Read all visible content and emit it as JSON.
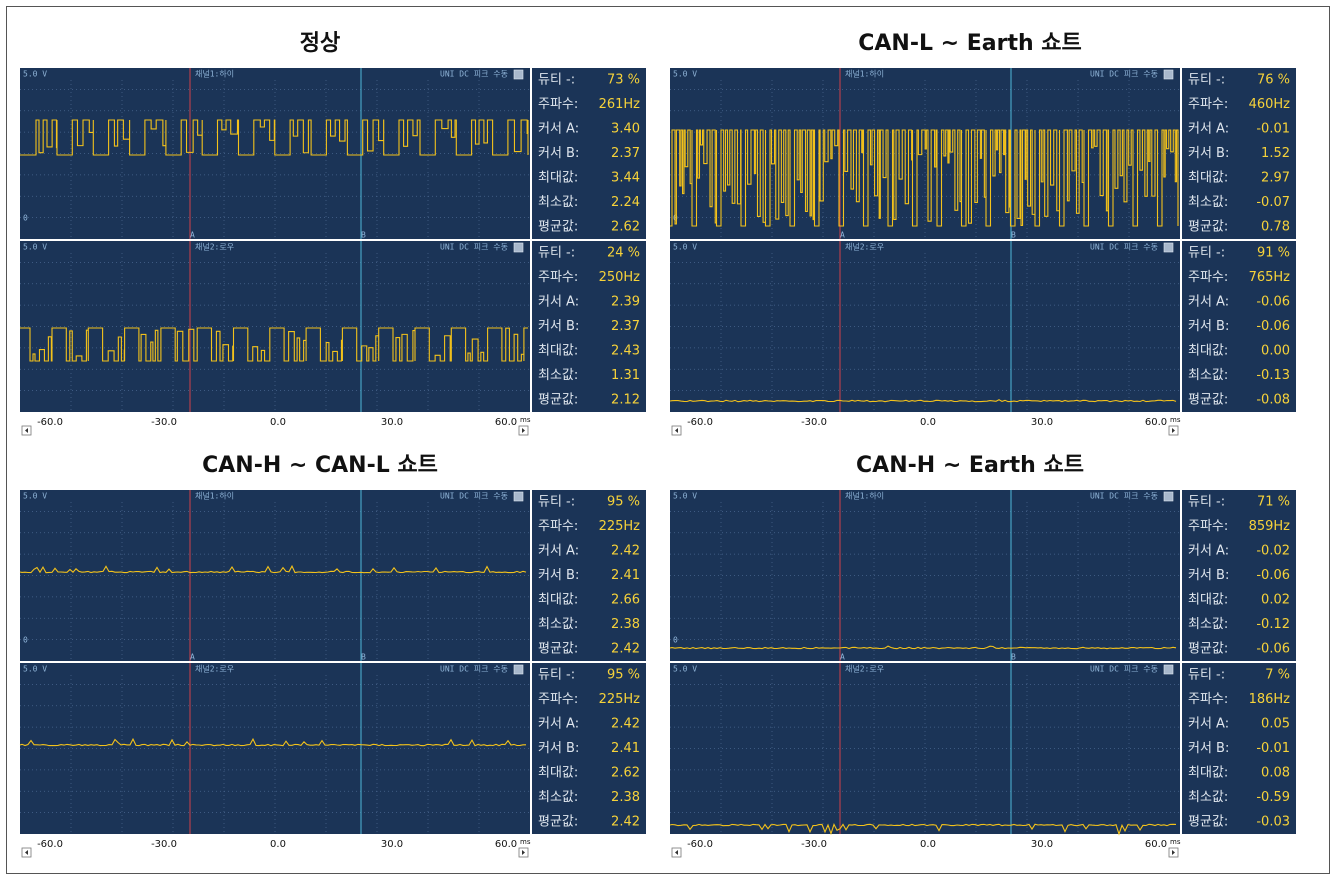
{
  "panels": [
    {
      "title": "정상",
      "channels": [
        {
          "scale": "5.0 V",
          "name": "채널1:하이",
          "mode": "UNI DC 피크 수동",
          "zero": "0",
          "cursor_labels": [
            "A",
            "B"
          ],
          "stats": [
            [
              "듀티 -:",
              "73 %"
            ],
            [
              "주파수:",
              "261Hz"
            ],
            [
              "커서 A:",
              "3.40"
            ],
            [
              "커서 B:",
              "2.37"
            ],
            [
              "최대값:",
              "3.44"
            ],
            [
              "최소값:",
              "2.24"
            ],
            [
              "평균값:",
              "2.62"
            ]
          ]
        },
        {
          "scale": "5.0 V",
          "name": "채널2:로우",
          "mode": "UNI DC 피크 수동",
          "stats": [
            [
              "듀티 -:",
              "24 %"
            ],
            [
              "주파수:",
              "250Hz"
            ],
            [
              "커서 A:",
              "2.39"
            ],
            [
              "커서 B:",
              "2.37"
            ],
            [
              "최대값:",
              "2.43"
            ],
            [
              "최소값:",
              "1.31"
            ],
            [
              "평균값:",
              "2.12"
            ]
          ]
        }
      ],
      "x_ticks": [
        "-60.0",
        "-30.0",
        "0.0",
        "30.0",
        "60.0"
      ],
      "x_unit": "ms"
    },
    {
      "title": "CAN-L ~ Earth 쇼트",
      "channels": [
        {
          "scale": "5.0 V",
          "name": "채널1:하이",
          "mode": "UNI DC 피크 수동",
          "zero": "0",
          "cursor_labels": [
            "A",
            "B"
          ],
          "stats": [
            [
              "듀티 -:",
              "76 %"
            ],
            [
              "주파수:",
              "460Hz"
            ],
            [
              "커서 A:",
              "-0.01"
            ],
            [
              "커서 B:",
              "1.52"
            ],
            [
              "최대값:",
              "2.97"
            ],
            [
              "최소값:",
              "-0.07"
            ],
            [
              "평균값:",
              "0.78"
            ]
          ]
        },
        {
          "scale": "5.0 V",
          "name": "채널2:로우",
          "mode": "UNI DC 피크 수동",
          "stats": [
            [
              "듀티 -:",
              "91 %"
            ],
            [
              "주파수:",
              "765Hz"
            ],
            [
              "커서 A:",
              "-0.06"
            ],
            [
              "커서 B:",
              "-0.06"
            ],
            [
              "최대값:",
              "0.00"
            ],
            [
              "최소값:",
              "-0.13"
            ],
            [
              "평균값:",
              "-0.08"
            ]
          ]
        }
      ],
      "x_ticks": [
        "-60.0",
        "-30.0",
        "0.0",
        "30.0",
        "60.0"
      ],
      "x_unit": "ms"
    },
    {
      "title": "CAN-H ~ CAN-L 쇼트",
      "channels": [
        {
          "scale": "5.0 V",
          "name": "채널1:하이",
          "mode": "UNI DC 피크 수동",
          "zero": "0",
          "cursor_labels": [
            "A",
            "B"
          ],
          "stats": [
            [
              "듀티 -:",
              "95 %"
            ],
            [
              "주파수:",
              "225Hz"
            ],
            [
              "커서 A:",
              "2.42"
            ],
            [
              "커서 B:",
              "2.41"
            ],
            [
              "최대값:",
              "2.66"
            ],
            [
              "최소값:",
              "2.38"
            ],
            [
              "평균값:",
              "2.42"
            ]
          ]
        },
        {
          "scale": "5.0 V",
          "name": "채널2:로우",
          "mode": "UNI DC 피크 수동",
          "stats": [
            [
              "듀티 -:",
              "95 %"
            ],
            [
              "주파수:",
              "225Hz"
            ],
            [
              "커서 A:",
              "2.42"
            ],
            [
              "커서 B:",
              "2.41"
            ],
            [
              "최대값:",
              "2.62"
            ],
            [
              "최소값:",
              "2.38"
            ],
            [
              "평균값:",
              "2.42"
            ]
          ]
        }
      ],
      "x_ticks": [
        "-60.0",
        "-30.0",
        "0.0",
        "30.0",
        "60.0"
      ],
      "x_unit": "ms"
    },
    {
      "title": "CAN-H ~ Earth 쇼트",
      "channels": [
        {
          "scale": "5.0 V",
          "name": "채널1:하이",
          "mode": "UNI DC 피크 수동",
          "zero": "0",
          "cursor_labels": [
            "A",
            "B"
          ],
          "stats": [
            [
              "듀티 -:",
              "71 %"
            ],
            [
              "주파수:",
              "859Hz"
            ],
            [
              "커서 A:",
              "-0.02"
            ],
            [
              "커서 B:",
              "-0.06"
            ],
            [
              "최대값:",
              "0.02"
            ],
            [
              "최소값:",
              "-0.12"
            ],
            [
              "평균값:",
              "-0.06"
            ]
          ]
        },
        {
          "scale": "5.0 V",
          "name": "채널2:로우",
          "mode": "UNI DC 피크 수동",
          "stats": [
            [
              "듀티 -:",
              "7 %"
            ],
            [
              "주파수:",
              "186Hz"
            ],
            [
              "커서 A:",
              "0.05"
            ],
            [
              "커서 B:",
              "-0.01"
            ],
            [
              "최대값:",
              "0.08"
            ],
            [
              "최소값:",
              "-0.59"
            ],
            [
              "평균값:",
              "-0.03"
            ]
          ]
        }
      ],
      "x_ticks": [
        "-60.0",
        "-30.0",
        "0.0",
        "30.0",
        "60.0"
      ],
      "x_unit": "ms"
    }
  ]
}
